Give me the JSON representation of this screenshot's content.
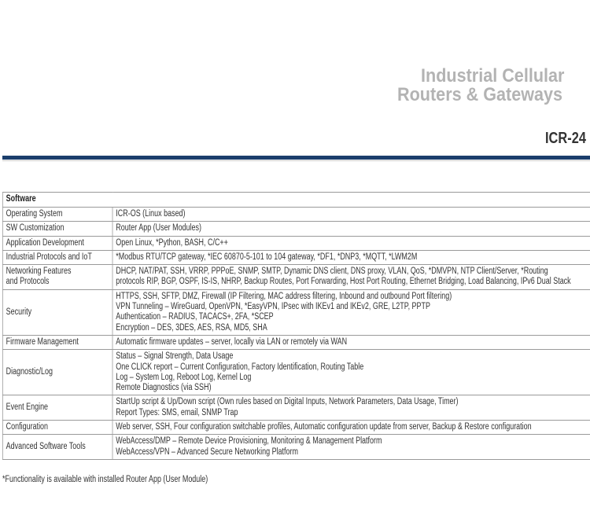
{
  "header": {
    "title_line1": "Industrial Cellular",
    "title_line2": "Routers & Gateways",
    "model": "ICR-24",
    "accent_color": "#1b3e6c"
  },
  "table": {
    "section": "Software",
    "rows": [
      {
        "label": "Operating System",
        "lines": [
          "ICR-OS (Linux based)"
        ]
      },
      {
        "label": "SW Customization",
        "lines": [
          "Router App (User Modules)"
        ]
      },
      {
        "label": "Application Development",
        "lines": [
          "Open Linux, *Python, BASH, C/C++"
        ]
      },
      {
        "label": "Industrial Protocols and IoT",
        "lines": [
          "*Modbus RTU/TCP gateway, *IEC 60870-5-101 to 104 gateway, *DF1, *DNP3, *MQTT, *LWM2M"
        ]
      },
      {
        "label": "Networking Features and Protocols",
        "label_lines": [
          "Networking Features",
          "and Protocols"
        ],
        "lines": [
          "DHCP, NAT/PAT, SSH, VRRP, PPPoE, SNMP, SMTP, Dynamic DNS client, DNS proxy, VLAN, QoS, *DMVPN, NTP Client/Server, *Routing",
          "protocols RIP, BGP, OSPF, IS-IS, NHRP, Backup Routes, Port Forwarding, Host Port Routing, Ethernet Bridging, Load Balancing, IPv6 Dual Stack"
        ]
      },
      {
        "label": "Security",
        "lines": [
          "HTTPS, SSH, SFTP, DMZ, Firewall (IP Filtering, MAC address filtering, Inbound and outbound Port filtering)",
          "VPN Tunneling – WireGuard, OpenVPN, *EasyVPN, IPsec with IKEv1 and IKEv2, GRE, L2TP, PPTP",
          "Authentication – RADIUS, TACACS+, 2FA, *SCEP",
          "Encryption – DES, 3DES, AES, RSA, MD5, SHA"
        ]
      },
      {
        "label": "Firmware Management",
        "lines": [
          "Automatic firmware updates – server, locally via LAN or remotely via WAN"
        ]
      },
      {
        "label": "Diagnostic/Log",
        "lines": [
          "Status – Signal Strength, Data Usage",
          "One CLICK report – Current Configuration, Factory Identification, Routing Table",
          "Log – System Log, Reboot Log, Kernel Log",
          "Remote Diagnostics (via SSH)"
        ]
      },
      {
        "label": "Event Engine",
        "lines": [
          "StartUp script & Up/Down script (Own rules based on Digital Inputs, Network Parameters, Data Usage, Timer)",
          "Report Types: SMS, email, SNMP Trap"
        ]
      },
      {
        "label": "Configuration",
        "lines": [
          "Web server, SSH, Four configuration switchable profiles, Automatic configuration update from server, Backup & Restore configuration"
        ]
      },
      {
        "label": "Advanced Software Tools",
        "lines": [
          "WebAccess/DMP – Remote Device Provisioning, Monitoring & Management Platform",
          "WebAccess/VPN – Advanced Secure Networking Platform"
        ]
      }
    ]
  },
  "footnote": "*Functionality is available with installed Router App (User Module)"
}
